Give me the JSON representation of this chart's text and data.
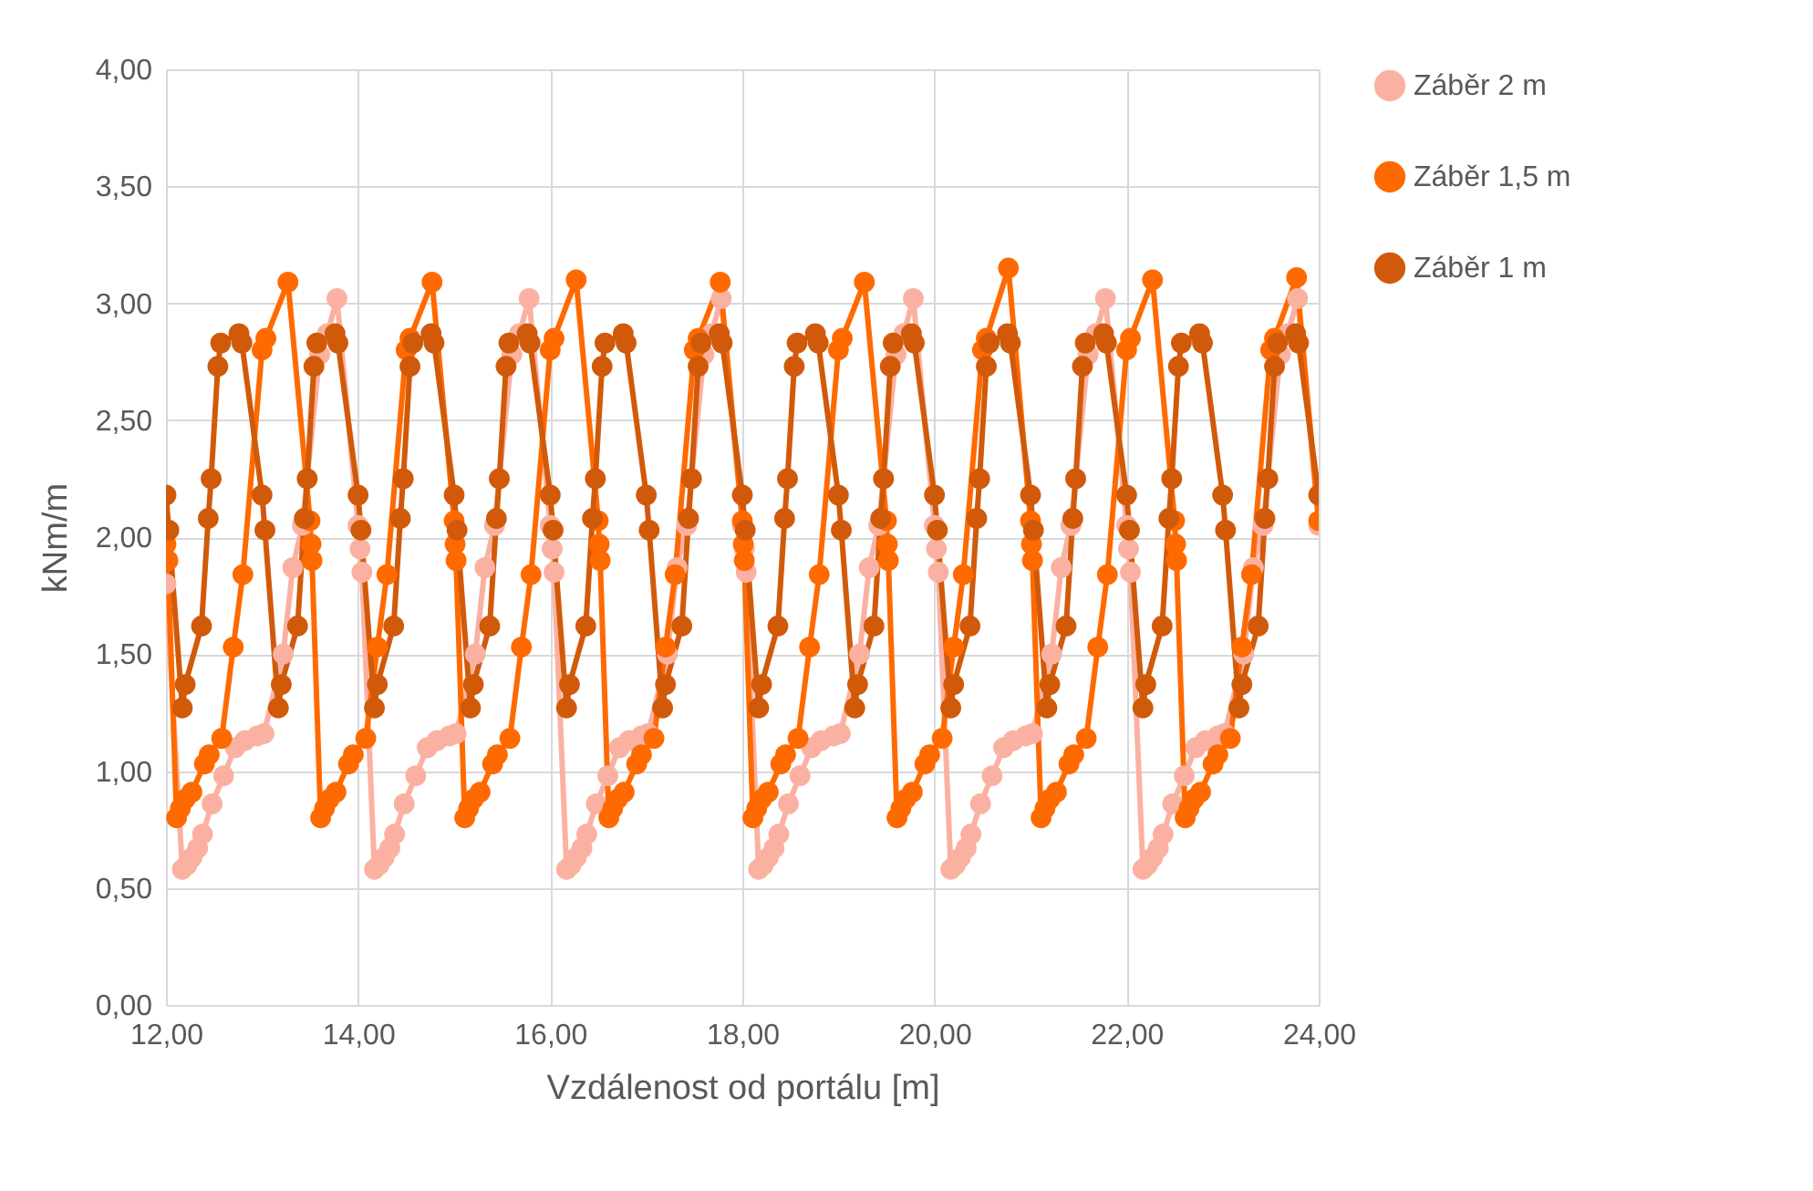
{
  "chart_data": {
    "type": "line",
    "xlabel": "Vzdálenost od portálu [m]",
    "ylabel": "kNm/m",
    "xlim": [
      12,
      24
    ],
    "ylim": [
      0,
      4
    ],
    "xticks": [
      {
        "value": 12,
        "label": "12,00"
      },
      {
        "value": 14,
        "label": "14,00"
      },
      {
        "value": 16,
        "label": "16,00"
      },
      {
        "value": 18,
        "label": "18,00"
      },
      {
        "value": 20,
        "label": "20,00"
      },
      {
        "value": 22,
        "label": "22,00"
      },
      {
        "value": 24,
        "label": "24,00"
      }
    ],
    "yticks": [
      {
        "value": 0,
        "label": "0,00"
      },
      {
        "value": 0.5,
        "label": "0,50"
      },
      {
        "value": 1,
        "label": "1,00"
      },
      {
        "value": 1.5,
        "label": "1,50"
      },
      {
        "value": 2,
        "label": "2,00"
      },
      {
        "value": 2.5,
        "label": "2,50"
      },
      {
        "value": 3,
        "label": "3,00"
      },
      {
        "value": 3.5,
        "label": "3,50"
      },
      {
        "value": 4,
        "label": "4,00"
      }
    ],
    "grid": true,
    "legend": "right",
    "marker": "circle",
    "line_style": "solid",
    "series": [
      {
        "name": "Záběr 2 m",
        "color": "#fbb1a2",
        "x": [
          12,
          12.17,
          12.22,
          12.27,
          12.33,
          12.38,
          12.48,
          12.6,
          12.72,
          12.82,
          12.95,
          13.02,
          13.22,
          13.32,
          13.42,
          13.6,
          13.68,
          13.78,
          14,
          14.02,
          14.04,
          14.17,
          14.22,
          14.27,
          14.33,
          14.38,
          14.48,
          14.6,
          14.72,
          14.82,
          14.95,
          15.02,
          15.22,
          15.32,
          15.42,
          15.6,
          15.68,
          15.78,
          16,
          16.02,
          16.04,
          16.17,
          16.22,
          16.27,
          16.33,
          16.38,
          16.48,
          16.6,
          16.72,
          16.82,
          16.95,
          17.02,
          17.22,
          17.32,
          17.42,
          17.6,
          17.68,
          17.78,
          18,
          18.02,
          18.04,
          18.17,
          18.22,
          18.27,
          18.33,
          18.38,
          18.48,
          18.6,
          18.72,
          18.82,
          18.95,
          19.02,
          19.22,
          19.32,
          19.42,
          19.6,
          19.68,
          19.78,
          20,
          20.02,
          20.04,
          20.17,
          20.22,
          20.27,
          20.33,
          20.38,
          20.48,
          20.6,
          20.72,
          20.82,
          20.95,
          21.02,
          21.22,
          21.32,
          21.42,
          21.6,
          21.68,
          21.78,
          22,
          22.02,
          22.04,
          22.17,
          22.22,
          22.27,
          22.33,
          22.38,
          22.48,
          22.6,
          22.72,
          22.82,
          22.95,
          23.02,
          23.22,
          23.32,
          23.42,
          23.6,
          23.68,
          23.78,
          24
        ],
        "values": [
          1.8,
          0.58,
          0.6,
          0.63,
          0.67,
          0.73,
          0.86,
          0.98,
          1.1,
          1.13,
          1.15,
          1.16,
          1.5,
          1.87,
          2.05,
          2.78,
          2.87,
          3.02,
          2.05,
          1.95,
          1.85,
          0.58,
          0.6,
          0.63,
          0.67,
          0.73,
          0.86,
          0.98,
          1.1,
          1.13,
          1.15,
          1.16,
          1.5,
          1.87,
          2.05,
          2.78,
          2.87,
          3.02,
          2.05,
          1.95,
          1.85,
          0.58,
          0.6,
          0.63,
          0.67,
          0.73,
          0.86,
          0.98,
          1.1,
          1.13,
          1.15,
          1.16,
          1.5,
          1.87,
          2.05,
          2.78,
          2.87,
          3.02,
          2.05,
          1.95,
          1.85,
          0.58,
          0.6,
          0.63,
          0.67,
          0.73,
          0.86,
          0.98,
          1.1,
          1.13,
          1.15,
          1.16,
          1.5,
          1.87,
          2.05,
          2.78,
          2.87,
          3.02,
          2.05,
          1.95,
          1.85,
          0.58,
          0.6,
          0.63,
          0.67,
          0.73,
          0.86,
          0.98,
          1.1,
          1.13,
          1.15,
          1.16,
          1.5,
          1.87,
          2.05,
          2.78,
          2.87,
          3.02,
          2.05,
          1.95,
          1.85,
          0.58,
          0.6,
          0.63,
          0.67,
          0.73,
          0.86,
          0.98,
          1.1,
          1.13,
          1.15,
          1.16,
          1.5,
          1.87,
          2.05,
          2.78,
          2.87,
          3.02,
          2.05
        ]
      },
      {
        "name": "Záběr 1,5 m",
        "color": "#ff6a00",
        "x": [
          12,
          12.02,
          12.11,
          12.15,
          12.2,
          12.27,
          12.4,
          12.45,
          12.58,
          12.7,
          12.8,
          13,
          13.04,
          13.27,
          13.5,
          13.51,
          13.52,
          13.61,
          13.65,
          13.7,
          13.77,
          13.9,
          13.95,
          14.08,
          14.2,
          14.3,
          14.5,
          14.54,
          14.77,
          15,
          15.01,
          15.02,
          15.11,
          15.15,
          15.2,
          15.27,
          15.4,
          15.45,
          15.58,
          15.7,
          15.8,
          16,
          16.04,
          16.27,
          16.5,
          16.51,
          16.52,
          16.61,
          16.65,
          16.7,
          16.77,
          16.9,
          16.95,
          17.08,
          17.2,
          17.3,
          17.5,
          17.54,
          17.77,
          18,
          18.01,
          18.02,
          18.11,
          18.15,
          18.2,
          18.27,
          18.4,
          18.45,
          18.58,
          18.7,
          18.8,
          19,
          19.04,
          19.27,
          19.5,
          19.51,
          19.52,
          19.61,
          19.65,
          19.7,
          19.77,
          19.9,
          19.95,
          20.08,
          20.2,
          20.3,
          20.5,
          20.54,
          20.77,
          21,
          21.01,
          21.02,
          21.11,
          21.15,
          21.2,
          21.27,
          21.4,
          21.45,
          21.58,
          21.7,
          21.8,
          22,
          22.04,
          22.27,
          22.5,
          22.51,
          22.52,
          22.61,
          22.65,
          22.7,
          22.77,
          22.9,
          22.95,
          23.08,
          23.2,
          23.3,
          23.5,
          23.54,
          23.77,
          24
        ],
        "values": [
          1.97,
          1.9,
          0.8,
          0.84,
          0.88,
          0.91,
          1.03,
          1.07,
          1.14,
          1.53,
          1.84,
          2.8,
          2.85,
          3.09,
          2.07,
          1.97,
          1.9,
          0.8,
          0.84,
          0.88,
          0.91,
          1.03,
          1.07,
          1.14,
          1.53,
          1.84,
          2.8,
          2.85,
          3.09,
          2.07,
          1.97,
          1.9,
          0.8,
          0.84,
          0.88,
          0.91,
          1.03,
          1.07,
          1.14,
          1.53,
          1.84,
          2.8,
          2.85,
          3.1,
          2.07,
          1.97,
          1.9,
          0.8,
          0.84,
          0.88,
          0.91,
          1.03,
          1.07,
          1.14,
          1.53,
          1.84,
          2.8,
          2.85,
          3.09,
          2.07,
          1.97,
          1.9,
          0.8,
          0.84,
          0.88,
          0.91,
          1.03,
          1.07,
          1.14,
          1.53,
          1.84,
          2.8,
          2.85,
          3.09,
          2.07,
          1.97,
          1.9,
          0.8,
          0.84,
          0.88,
          0.91,
          1.03,
          1.07,
          1.14,
          1.53,
          1.84,
          2.8,
          2.85,
          3.15,
          2.07,
          1.97,
          1.9,
          0.8,
          0.84,
          0.88,
          0.91,
          1.03,
          1.07,
          1.14,
          1.53,
          1.84,
          2.8,
          2.85,
          3.1,
          2.07,
          1.97,
          1.9,
          0.8,
          0.84,
          0.88,
          0.91,
          1.03,
          1.07,
          1.14,
          1.53,
          1.84,
          2.8,
          2.85,
          3.11,
          2.07
        ]
      },
      {
        "name": "Záběr 1 m",
        "color": "#d15a0a",
        "x": [
          12,
          12.03,
          12.17,
          12.2,
          12.37,
          12.44,
          12.47,
          12.54,
          12.57,
          12.76,
          12.79,
          13,
          13.03,
          13.17,
          13.2,
          13.37,
          13.44,
          13.47,
          13.54,
          13.57,
          13.76,
          13.79,
          14,
          14.03,
          14.17,
          14.2,
          14.37,
          14.44,
          14.47,
          14.54,
          14.57,
          14.76,
          14.79,
          15,
          15.03,
          15.17,
          15.2,
          15.37,
          15.44,
          15.47,
          15.54,
          15.57,
          15.76,
          15.79,
          16,
          16.03,
          16.17,
          16.2,
          16.37,
          16.44,
          16.47,
          16.54,
          16.57,
          16.76,
          16.79,
          17,
          17.03,
          17.17,
          17.2,
          17.37,
          17.44,
          17.47,
          17.54,
          17.57,
          17.76,
          17.79,
          18,
          18.03,
          18.17,
          18.2,
          18.37,
          18.44,
          18.47,
          18.54,
          18.57,
          18.76,
          18.79,
          19,
          19.03,
          19.17,
          19.2,
          19.37,
          19.44,
          19.47,
          19.54,
          19.57,
          19.76,
          19.79,
          20,
          20.03,
          20.17,
          20.2,
          20.37,
          20.44,
          20.47,
          20.54,
          20.57,
          20.76,
          20.79,
          21,
          21.03,
          21.17,
          21.2,
          21.37,
          21.44,
          21.47,
          21.54,
          21.57,
          21.76,
          21.79,
          22,
          22.03,
          22.17,
          22.2,
          22.37,
          22.44,
          22.47,
          22.54,
          22.57,
          22.76,
          22.79,
          23,
          23.03,
          23.17,
          23.2,
          23.37,
          23.44,
          23.47,
          23.54,
          23.57,
          23.76,
          23.79,
          24
        ],
        "values": [
          2.18,
          2.03,
          1.27,
          1.37,
          1.62,
          2.08,
          2.25,
          2.73,
          2.83,
          2.87,
          2.83,
          2.18,
          2.03,
          1.27,
          1.37,
          1.62,
          2.08,
          2.25,
          2.73,
          2.83,
          2.87,
          2.83,
          2.18,
          2.03,
          1.27,
          1.37,
          1.62,
          2.08,
          2.25,
          2.73,
          2.83,
          2.87,
          2.83,
          2.18,
          2.03,
          1.27,
          1.37,
          1.62,
          2.08,
          2.25,
          2.73,
          2.83,
          2.87,
          2.83,
          2.18,
          2.03,
          1.27,
          1.37,
          1.62,
          2.08,
          2.25,
          2.73,
          2.83,
          2.87,
          2.83,
          2.18,
          2.03,
          1.27,
          1.37,
          1.62,
          2.08,
          2.25,
          2.73,
          2.83,
          2.87,
          2.83,
          2.18,
          2.03,
          1.27,
          1.37,
          1.62,
          2.08,
          2.25,
          2.73,
          2.83,
          2.87,
          2.83,
          2.18,
          2.03,
          1.27,
          1.37,
          1.62,
          2.08,
          2.25,
          2.73,
          2.83,
          2.87,
          2.83,
          2.18,
          2.03,
          1.27,
          1.37,
          1.62,
          2.08,
          2.25,
          2.73,
          2.83,
          2.87,
          2.83,
          2.18,
          2.03,
          1.27,
          1.37,
          1.62,
          2.08,
          2.25,
          2.73,
          2.83,
          2.87,
          2.83,
          2.18,
          2.03,
          1.27,
          1.37,
          1.62,
          2.08,
          2.25,
          2.73,
          2.83,
          2.87,
          2.83,
          2.18,
          2.03,
          1.27,
          1.37,
          1.62,
          2.08,
          2.25,
          2.73,
          2.83,
          2.87,
          2.83,
          2.18
        ]
      }
    ]
  }
}
